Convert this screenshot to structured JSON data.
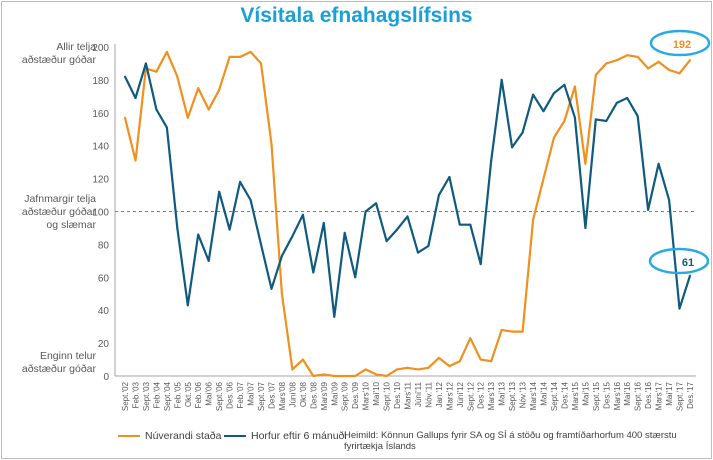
{
  "chart_data": {
    "type": "line",
    "title": "Vísitala efnahagslífsins",
    "xlabel": "",
    "ylabel": "",
    "ylim": [
      0,
      200
    ],
    "yticks": [
      0,
      20,
      40,
      60,
      80,
      100,
      120,
      140,
      160,
      180,
      200
    ],
    "reference_line": 100,
    "y_annotations": {
      "top": [
        "Allir telja",
        "aðstæður góðar"
      ],
      "middle": [
        "Jafnmargir telja",
        "aðstæður góðar",
        "og slæmar"
      ],
      "bottom": [
        "Enginn telur",
        "aðstæður góðar"
      ]
    },
    "categories": [
      "Sept.'02",
      "Feb.'03",
      "Sept.'03",
      "Feb.'04",
      "Sept.'04",
      "Feb.'05",
      "Okt.'05",
      "Feb.'06",
      "Maí'06",
      "Sept.'06",
      "Des.'06",
      "Feb.'07",
      "Maí'07",
      "Sept.'07",
      "Des.'07",
      "Mars'08",
      "Júní'08",
      "Okt.'08",
      "Des.'08",
      "Mars'09",
      "Maí'09",
      "Sept.'09",
      "Des.'09",
      "Mars'10",
      "Maí'10",
      "Sept.'10",
      "Des.'10",
      "Mars'11",
      "Júní'11",
      "Nóv.'11",
      "Jan.'12",
      "Mars'12",
      "Júní'12",
      "Sept.'12",
      "Des.'12",
      "Mars'13",
      "Maí'13",
      "Sept.'13",
      "Nóv.'13",
      "Mars'14",
      "Maí'14",
      "Sept.'14",
      "Des.'14",
      "Mars'15",
      "Maí'15",
      "Sept.'15",
      "Des.'15",
      "Mars'16",
      "Maí'16",
      "Sept.'16",
      "Des.'16",
      "Mars'17",
      "Maí'17",
      "Sept.'17",
      "Des.'17"
    ],
    "series": [
      {
        "name": "Núverandi staða",
        "color": "#f0901e",
        "values": [
          157,
          131,
          187,
          185,
          197,
          182,
          157,
          175,
          162,
          174,
          194,
          194,
          197,
          190,
          141,
          50,
          4,
          10,
          0,
          1,
          0,
          0,
          0,
          4,
          1,
          0,
          4,
          5,
          4,
          5,
          11,
          6,
          9,
          23,
          10,
          9,
          28,
          27,
          27,
          95,
          120,
          145,
          155,
          176,
          129,
          183,
          190,
          192,
          195,
          194,
          187,
          191,
          186,
          184,
          192
        ]
      },
      {
        "name": "Horfur eftir 6 mánuði",
        "color": "#0f5a7f",
        "values": [
          182,
          169,
          190,
          162,
          151,
          90,
          43,
          86,
          70,
          112,
          89,
          118,
          107,
          80,
          53,
          73,
          85,
          98,
          63,
          93,
          36,
          87,
          60,
          100,
          105,
          82,
          89,
          97,
          75,
          79,
          110,
          121,
          92,
          92,
          68,
          131,
          180,
          139,
          148,
          171,
          161,
          172,
          177,
          157,
          90,
          156,
          155,
          166,
          169,
          158,
          101,
          129,
          107,
          41,
          61
        ]
      }
    ],
    "callouts": [
      {
        "series": "Núverandi staða",
        "label": "192",
        "color": "#f0901e"
      },
      {
        "series": "Horfur eftir 6 mánuði",
        "label": "61",
        "color": "#0f5a7f"
      }
    ],
    "legend": "bottom-left",
    "source": "Heimild: Könnun Gallups fyrir SA og SÍ á stöðu og framtíðarhorfum 400 stærstu fyrirtækja Íslands"
  }
}
